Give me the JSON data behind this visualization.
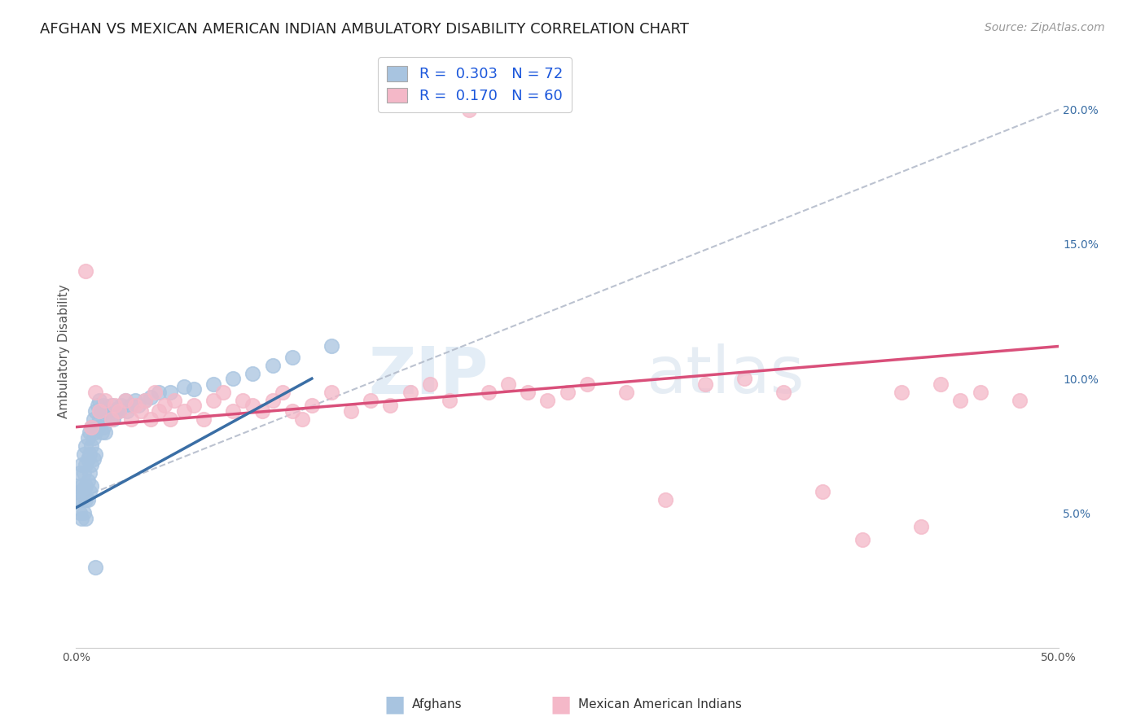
{
  "title": "AFGHAN VS MEXICAN AMERICAN INDIAN AMBULATORY DISABILITY CORRELATION CHART",
  "source": "Source: ZipAtlas.com",
  "ylabel": "Ambulatory Disability",
  "xlim": [
    0.0,
    0.5
  ],
  "ylim": [
    0.0,
    0.22
  ],
  "xticks": [
    0.0,
    0.05,
    0.1,
    0.15,
    0.2,
    0.25,
    0.3,
    0.35,
    0.4,
    0.45,
    0.5
  ],
  "xticklabels": [
    "0.0%",
    "",
    "",
    "",
    "",
    "",
    "",
    "",
    "",
    "",
    "50.0%"
  ],
  "yticks": [
    0.0,
    0.05,
    0.1,
    0.15,
    0.2
  ],
  "yticklabels_right": [
    "",
    "5.0%",
    "10.0%",
    "15.0%",
    "20.0%"
  ],
  "afghan_R": 0.303,
  "afghan_N": 72,
  "mexican_R": 0.17,
  "mexican_N": 60,
  "afghan_color": "#a8c4e0",
  "afghan_line_color": "#3a6ea5",
  "mexican_color": "#f4b8c8",
  "mexican_line_color": "#d94f7a",
  "trend_line_color": "#b0b8c8",
  "watermark_zip": "ZIP",
  "watermark_atlas": "atlas",
  "background_color": "#ffffff",
  "grid_color": "#cccccc",
  "legend_color": "#1a56db",
  "title_fontsize": 13,
  "source_fontsize": 10,
  "axis_label_fontsize": 11,
  "tick_fontsize": 10,
  "legend_fontsize": 13,
  "afghan_x": [
    0.001,
    0.001,
    0.002,
    0.002,
    0.002,
    0.003,
    0.003,
    0.003,
    0.003,
    0.004,
    0.004,
    0.004,
    0.004,
    0.005,
    0.005,
    0.005,
    0.005,
    0.005,
    0.006,
    0.006,
    0.006,
    0.006,
    0.007,
    0.007,
    0.007,
    0.007,
    0.008,
    0.008,
    0.008,
    0.008,
    0.009,
    0.009,
    0.009,
    0.01,
    0.01,
    0.01,
    0.011,
    0.011,
    0.012,
    0.012,
    0.013,
    0.013,
    0.014,
    0.014,
    0.015,
    0.015,
    0.016,
    0.017,
    0.018,
    0.019,
    0.02,
    0.021,
    0.022,
    0.023,
    0.025,
    0.026,
    0.028,
    0.03,
    0.032,
    0.035,
    0.038,
    0.042,
    0.048,
    0.055,
    0.06,
    0.07,
    0.08,
    0.09,
    0.1,
    0.11,
    0.13,
    0.01
  ],
  "afghan_y": [
    0.06,
    0.055,
    0.065,
    0.058,
    0.05,
    0.068,
    0.06,
    0.055,
    0.048,
    0.072,
    0.065,
    0.058,
    0.05,
    0.075,
    0.068,
    0.06,
    0.055,
    0.048,
    0.078,
    0.07,
    0.062,
    0.055,
    0.08,
    0.072,
    0.065,
    0.058,
    0.082,
    0.075,
    0.068,
    0.06,
    0.085,
    0.078,
    0.07,
    0.088,
    0.08,
    0.072,
    0.09,
    0.082,
    0.092,
    0.085,
    0.088,
    0.08,
    0.09,
    0.082,
    0.088,
    0.08,
    0.085,
    0.088,
    0.09,
    0.085,
    0.087,
    0.089,
    0.088,
    0.09,
    0.092,
    0.088,
    0.09,
    0.092,
    0.09,
    0.092,
    0.093,
    0.095,
    0.095,
    0.097,
    0.096,
    0.098,
    0.1,
    0.102,
    0.105,
    0.108,
    0.112,
    0.03
  ],
  "mexican_x": [
    0.005,
    0.008,
    0.01,
    0.012,
    0.015,
    0.018,
    0.02,
    0.022,
    0.025,
    0.028,
    0.03,
    0.033,
    0.035,
    0.038,
    0.04,
    0.042,
    0.045,
    0.048,
    0.05,
    0.055,
    0.06,
    0.065,
    0.07,
    0.075,
    0.08,
    0.085,
    0.09,
    0.095,
    0.1,
    0.105,
    0.11,
    0.115,
    0.12,
    0.13,
    0.14,
    0.15,
    0.16,
    0.17,
    0.18,
    0.19,
    0.2,
    0.21,
    0.22,
    0.23,
    0.24,
    0.25,
    0.26,
    0.28,
    0.3,
    0.32,
    0.34,
    0.36,
    0.38,
    0.4,
    0.42,
    0.43,
    0.44,
    0.45,
    0.46,
    0.48
  ],
  "mexican_y": [
    0.14,
    0.082,
    0.095,
    0.088,
    0.092,
    0.085,
    0.09,
    0.088,
    0.092,
    0.085,
    0.09,
    0.088,
    0.092,
    0.085,
    0.095,
    0.088,
    0.09,
    0.085,
    0.092,
    0.088,
    0.09,
    0.085,
    0.092,
    0.095,
    0.088,
    0.092,
    0.09,
    0.088,
    0.092,
    0.095,
    0.088,
    0.085,
    0.09,
    0.095,
    0.088,
    0.092,
    0.09,
    0.095,
    0.098,
    0.092,
    0.2,
    0.095,
    0.098,
    0.095,
    0.092,
    0.095,
    0.098,
    0.095,
    0.055,
    0.098,
    0.1,
    0.095,
    0.058,
    0.04,
    0.095,
    0.045,
    0.098,
    0.092,
    0.095,
    0.092
  ],
  "afghan_line_x0": 0.0,
  "afghan_line_y0": 0.052,
  "afghan_line_x1": 0.12,
  "afghan_line_y1": 0.1,
  "mexican_line_x0": 0.0,
  "mexican_line_y0": 0.082,
  "mexican_line_x1": 0.5,
  "mexican_line_y1": 0.112,
  "dashed_line_x0": 0.0,
  "dashed_line_y0": 0.055,
  "dashed_line_x1": 0.5,
  "dashed_line_y1": 0.2
}
